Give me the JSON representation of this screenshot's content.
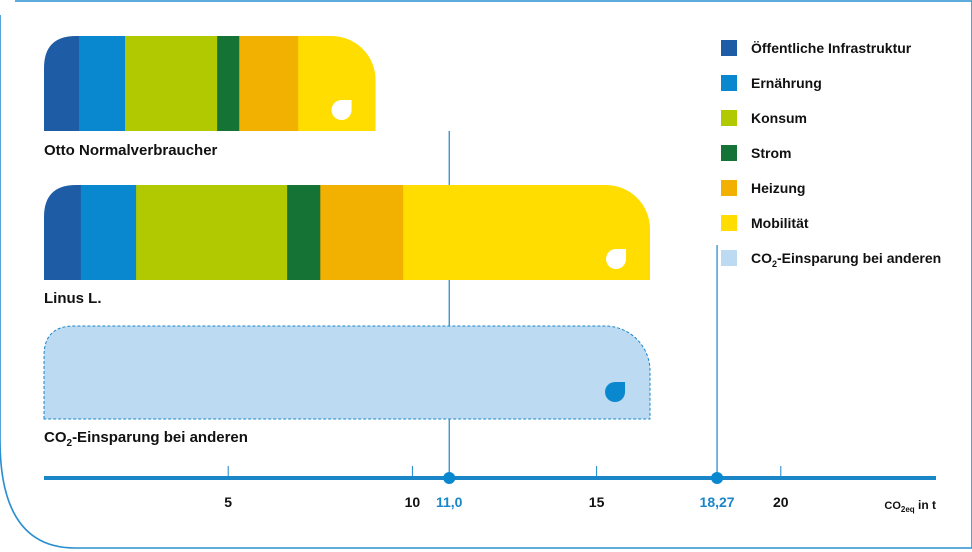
{
  "chart_data": {
    "type": "bar",
    "orientation": "horizontal",
    "stacked": true,
    "unit": {
      "base": "CO",
      "sub": "2eq",
      "suffix": " in t"
    },
    "xlim": [
      0,
      22.4
    ],
    "x_ticks": [
      5,
      10,
      15,
      20
    ],
    "x_tick_labels": [
      "5",
      "10",
      "15",
      "20"
    ],
    "markers": [
      {
        "value": 11.0,
        "label": "11,0"
      },
      {
        "value": 18.27,
        "label": "18,27"
      }
    ],
    "series": [
      {
        "name": "Öffentliche Infrastruktur",
        "color": "#1f5ca6"
      },
      {
        "name": "Ernährung",
        "color": "#0a88cf"
      },
      {
        "name": "Konsum",
        "color": "#b0c900"
      },
      {
        "name": "Strom",
        "color": "#157336"
      },
      {
        "name": "Heizung",
        "color": "#f2b100"
      },
      {
        "name": "Mobilität",
        "color": "#ffdd00"
      }
    ],
    "categories": [
      {
        "name": "Otto Normalverbraucher",
        "values": [
          0.95,
          1.25,
          2.5,
          0.6,
          1.6,
          2.1
        ],
        "total": 9.0
      },
      {
        "name": "Linus L.",
        "values": [
          1.0,
          1.5,
          4.1,
          0.9,
          2.25,
          6.7
        ],
        "total": 16.45
      },
      {
        "name": "CO₂-Einsparung bei anderen",
        "name_parts": {
          "base": "CO",
          "sub": "2",
          "rest": "-Einsparung bei anderen"
        },
        "values_savings": [
          16.45
        ],
        "color": "#bcdaf2"
      }
    ],
    "legend": {
      "position": "top-right",
      "items": [
        {
          "label": "Öffentliche Infrastruktur",
          "color": "#1f5ca6"
        },
        {
          "label": "Ernährung",
          "color": "#0a88cf"
        },
        {
          "label": "Konsum",
          "color": "#b0c900"
        },
        {
          "label": "Strom",
          "color": "#157336"
        },
        {
          "label": "Heizung",
          "color": "#f2b100"
        },
        {
          "label": "Mobilität",
          "color": "#ffdd00"
        },
        {
          "label": "CO₂-Einsparung bei anderen",
          "label_parts": {
            "base": "CO",
            "sub": "2",
            "rest": "-Einsparung bei anderen"
          },
          "color": "#bcdaf2"
        }
      ]
    },
    "axis_color": "#1a86c8",
    "frame_color": "#2a8fd0"
  }
}
